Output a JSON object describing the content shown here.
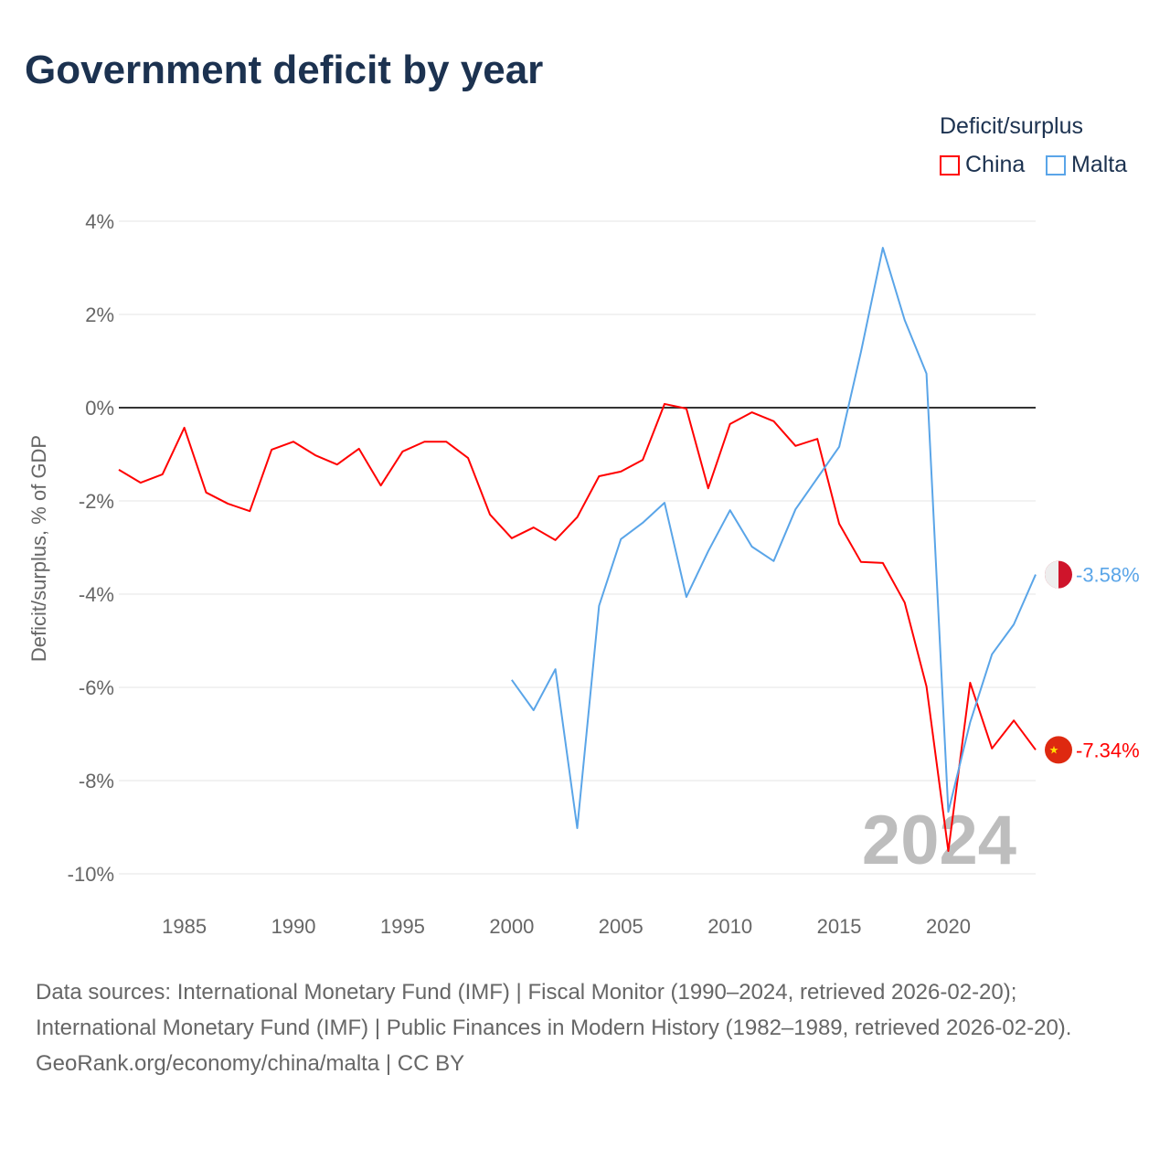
{
  "chart_data": {
    "type": "line",
    "title": "Government deficit by year",
    "ylabel": "Deficit/surplus, % of GDP",
    "xlabel": "",
    "ylim": [
      -10,
      4
    ],
    "xlim": [
      1982,
      2024
    ],
    "yticks": [
      4,
      2,
      0,
      -2,
      -4,
      -6,
      -8,
      -10
    ],
    "ytick_labels": [
      "4%",
      "2%",
      "0%",
      "-2%",
      "-4%",
      "-6%",
      "-8%",
      "-10%"
    ],
    "xticks": [
      1985,
      1990,
      1995,
      2000,
      2005,
      2010,
      2015,
      2020
    ],
    "xtick_labels": [
      "1985",
      "1990",
      "1995",
      "2000",
      "2005",
      "2010",
      "2015",
      "2020"
    ],
    "grid": true,
    "legend_title": "Deficit/surplus",
    "legend_position": "top-right",
    "year_watermark": "2024",
    "series": [
      {
        "name": "China",
        "color": "#ff0000",
        "end_label": "-7.34%",
        "x": [
          1982,
          1983,
          1984,
          1985,
          1986,
          1987,
          1988,
          1989,
          1990,
          1991,
          1992,
          1993,
          1994,
          1995,
          1996,
          1997,
          1998,
          1999,
          2000,
          2001,
          2002,
          2003,
          2004,
          2005,
          2006,
          2007,
          2008,
          2009,
          2010,
          2011,
          2012,
          2013,
          2014,
          2015,
          2016,
          2017,
          2018,
          2019,
          2020,
          2021,
          2022,
          2023,
          2024
        ],
        "values": [
          -1.33,
          -1.61,
          -1.43,
          -0.43,
          -1.82,
          -2.06,
          -2.22,
          -0.9,
          -0.73,
          -1.02,
          -1.22,
          -0.88,
          -1.67,
          -0.94,
          -0.73,
          -0.73,
          -1.08,
          -2.29,
          -2.8,
          -2.57,
          -2.84,
          -2.35,
          -1.47,
          -1.37,
          -1.12,
          0.08,
          -0.02,
          -1.73,
          -0.35,
          -0.1,
          -0.29,
          -0.82,
          -0.67,
          -2.49,
          -3.31,
          -3.33,
          -4.18,
          -5.98,
          -9.51,
          -5.9,
          -7.31,
          -6.71,
          -7.34
        ]
      },
      {
        "name": "Malta",
        "color": "#5aa5e8",
        "end_label": "-3.58%",
        "x": [
          2000,
          2001,
          2002,
          2003,
          2004,
          2005,
          2006,
          2007,
          2008,
          2009,
          2010,
          2011,
          2012,
          2013,
          2014,
          2015,
          2016,
          2017,
          2018,
          2019,
          2020,
          2021,
          2022,
          2023,
          2024
        ],
        "values": [
          -5.84,
          -6.49,
          -5.61,
          -9.02,
          -4.25,
          -2.82,
          -2.47,
          -2.04,
          -4.06,
          -3.08,
          -2.2,
          -2.98,
          -3.29,
          -2.18,
          -1.51,
          -0.84,
          1.2,
          3.43,
          1.88,
          0.73,
          -8.67,
          -6.75,
          -5.29,
          -4.65,
          -3.58
        ]
      }
    ]
  },
  "footer": {
    "sources": "Data sources: International Monetary Fund (IMF) | Fiscal Monitor (1990–2024, retrieved 2026-02-20); International Monetary Fund (IMF) | Public Finances in Modern History (1982–1989, retrieved 2026-02-20).",
    "credit": "GeoRank.org/economy/china/malta | CC BY"
  }
}
